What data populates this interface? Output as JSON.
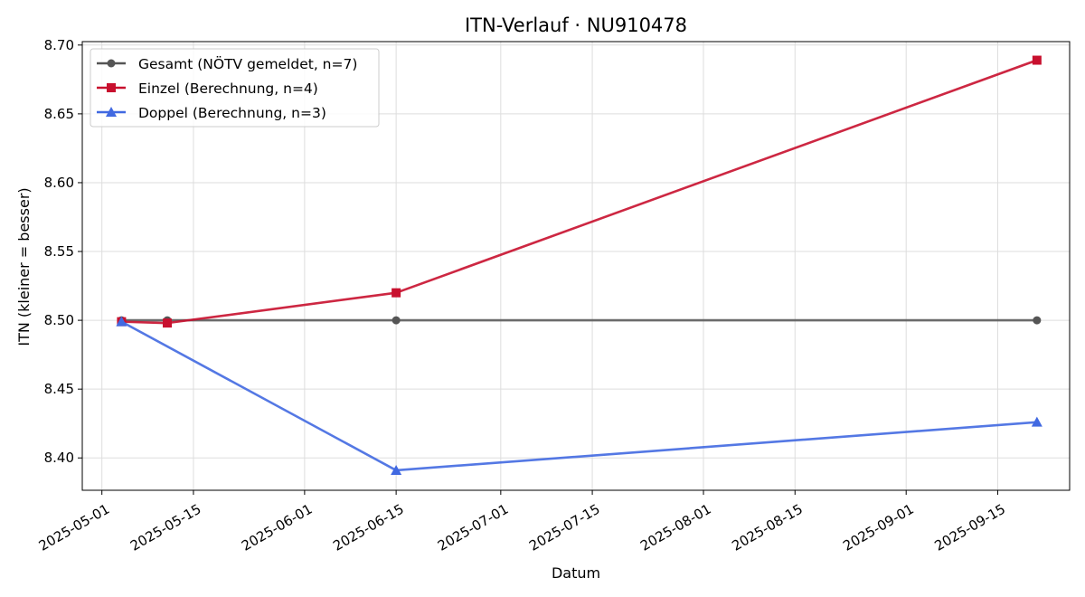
{
  "chart_data": {
    "type": "line",
    "title": "ITN-Verlauf · NU910478",
    "xlabel": "Datum",
    "ylabel": "ITN  (kleiner = besser)",
    "x_ticks": [
      "2025-05-01",
      "2025-05-15",
      "2025-06-01",
      "2025-06-15",
      "2025-07-01",
      "2025-07-15",
      "2025-08-01",
      "2025-08-15",
      "2025-09-01",
      "2025-09-15"
    ],
    "y_ticks": [
      "8.40",
      "8.45",
      "8.50",
      "8.55",
      "8.60",
      "8.65",
      "8.70"
    ],
    "xlim": [
      "2025-04-28",
      "2025-09-26"
    ],
    "ylim": [
      8.3765,
      8.7025
    ],
    "grid": true,
    "legend_position": "top-left",
    "series": [
      {
        "name": "Gesamt (NÖTV gemeldet, n=7)",
        "color": "#555555",
        "marker": "circle",
        "points": [
          {
            "x": "2025-05-04",
            "y": 8.5
          },
          {
            "x": "2025-05-11",
            "y": 8.5
          },
          {
            "x": "2025-06-15",
            "y": 8.5
          },
          {
            "x": "2025-09-21",
            "y": 8.5
          }
        ]
      },
      {
        "name": "Einzel (Berechnung, n=4)",
        "color": "#c8102e",
        "marker": "square",
        "points": [
          {
            "x": "2025-05-04",
            "y": 8.499
          },
          {
            "x": "2025-05-11",
            "y": 8.498
          },
          {
            "x": "2025-06-15",
            "y": 8.52
          },
          {
            "x": "2025-09-21",
            "y": 8.689
          }
        ]
      },
      {
        "name": "Doppel (Berechnung, n=3)",
        "color": "#4169e1",
        "marker": "triangle",
        "points": [
          {
            "x": "2025-05-04",
            "y": 8.499
          },
          {
            "x": "2025-06-15",
            "y": 8.391
          },
          {
            "x": "2025-09-21",
            "y": 8.426
          }
        ]
      }
    ]
  }
}
